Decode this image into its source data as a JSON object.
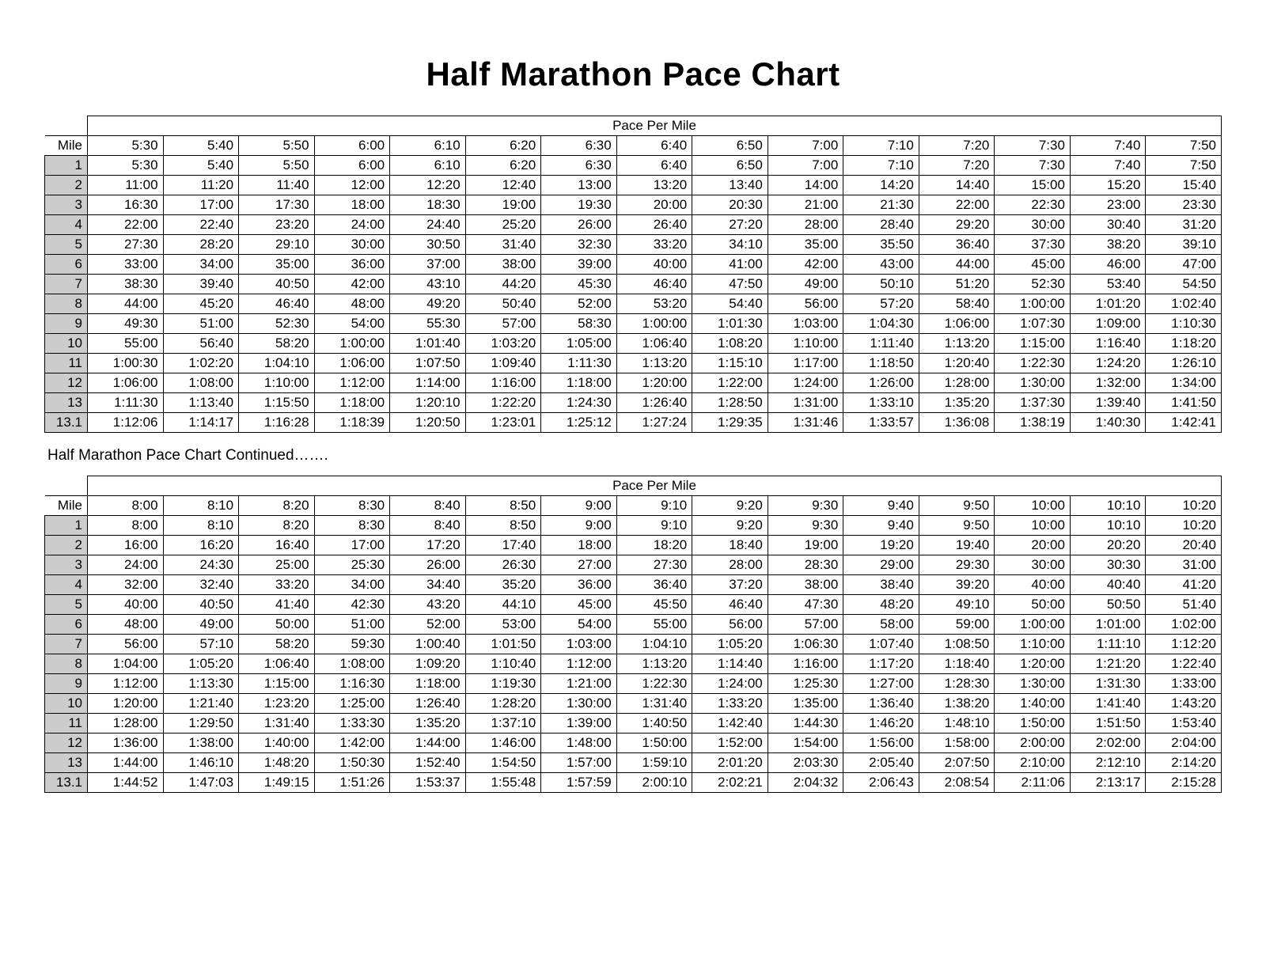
{
  "title": "Half Marathon Pace Chart",
  "subtitle": "Half Marathon Pace Chart Continued…….",
  "table": {
    "type": "table",
    "pacePerMileLabel": "Pace Per Mile",
    "mileLabel": "Mile",
    "mileColBg": "#cccccc",
    "borderColor": "#000000",
    "background": "#ffffff",
    "fontSize": 17,
    "titleFontSize": 42,
    "miles": [
      "1",
      "2",
      "3",
      "4",
      "5",
      "6",
      "7",
      "8",
      "9",
      "10",
      "11",
      "12",
      "13",
      "13.1"
    ]
  },
  "table1": {
    "paceCols": [
      "5:30",
      "5:40",
      "5:50",
      "6:00",
      "6:10",
      "6:20",
      "6:30",
      "6:40",
      "6:50",
      "7:00",
      "7:10",
      "7:20",
      "7:30",
      "7:40",
      "7:50"
    ],
    "rows": [
      [
        "5:30",
        "5:40",
        "5:50",
        "6:00",
        "6:10",
        "6:20",
        "6:30",
        "6:40",
        "6:50",
        "7:00",
        "7:10",
        "7:20",
        "7:30",
        "7:40",
        "7:50"
      ],
      [
        "11:00",
        "11:20",
        "11:40",
        "12:00",
        "12:20",
        "12:40",
        "13:00",
        "13:20",
        "13:40",
        "14:00",
        "14:20",
        "14:40",
        "15:00",
        "15:20",
        "15:40"
      ],
      [
        "16:30",
        "17:00",
        "17:30",
        "18:00",
        "18:30",
        "19:00",
        "19:30",
        "20:00",
        "20:30",
        "21:00",
        "21:30",
        "22:00",
        "22:30",
        "23:00",
        "23:30"
      ],
      [
        "22:00",
        "22:40",
        "23:20",
        "24:00",
        "24:40",
        "25:20",
        "26:00",
        "26:40",
        "27:20",
        "28:00",
        "28:40",
        "29:20",
        "30:00",
        "30:40",
        "31:20"
      ],
      [
        "27:30",
        "28:20",
        "29:10",
        "30:00",
        "30:50",
        "31:40",
        "32:30",
        "33:20",
        "34:10",
        "35:00",
        "35:50",
        "36:40",
        "37:30",
        "38:20",
        "39:10"
      ],
      [
        "33:00",
        "34:00",
        "35:00",
        "36:00",
        "37:00",
        "38:00",
        "39:00",
        "40:00",
        "41:00",
        "42:00",
        "43:00",
        "44:00",
        "45:00",
        "46:00",
        "47:00"
      ],
      [
        "38:30",
        "39:40",
        "40:50",
        "42:00",
        "43:10",
        "44:20",
        "45:30",
        "46:40",
        "47:50",
        "49:00",
        "50:10",
        "51:20",
        "52:30",
        "53:40",
        "54:50"
      ],
      [
        "44:00",
        "45:20",
        "46:40",
        "48:00",
        "49:20",
        "50:40",
        "52:00",
        "53:20",
        "54:40",
        "56:00",
        "57:20",
        "58:40",
        "1:00:00",
        "1:01:20",
        "1:02:40"
      ],
      [
        "49:30",
        "51:00",
        "52:30",
        "54:00",
        "55:30",
        "57:00",
        "58:30",
        "1:00:00",
        "1:01:30",
        "1:03:00",
        "1:04:30",
        "1:06:00",
        "1:07:30",
        "1:09:00",
        "1:10:30"
      ],
      [
        "55:00",
        "56:40",
        "58:20",
        "1:00:00",
        "1:01:40",
        "1:03:20",
        "1:05:00",
        "1:06:40",
        "1:08:20",
        "1:10:00",
        "1:11:40",
        "1:13:20",
        "1:15:00",
        "1:16:40",
        "1:18:20"
      ],
      [
        "1:00:30",
        "1:02:20",
        "1:04:10",
        "1:06:00",
        "1:07:50",
        "1:09:40",
        "1:11:30",
        "1:13:20",
        "1:15:10",
        "1:17:00",
        "1:18:50",
        "1:20:40",
        "1:22:30",
        "1:24:20",
        "1:26:10"
      ],
      [
        "1:06:00",
        "1:08:00",
        "1:10:00",
        "1:12:00",
        "1:14:00",
        "1:16:00",
        "1:18:00",
        "1:20:00",
        "1:22:00",
        "1:24:00",
        "1:26:00",
        "1:28:00",
        "1:30:00",
        "1:32:00",
        "1:34:00"
      ],
      [
        "1:11:30",
        "1:13:40",
        "1:15:50",
        "1:18:00",
        "1:20:10",
        "1:22:20",
        "1:24:30",
        "1:26:40",
        "1:28:50",
        "1:31:00",
        "1:33:10",
        "1:35:20",
        "1:37:30",
        "1:39:40",
        "1:41:50"
      ],
      [
        "1:12:06",
        "1:14:17",
        "1:16:28",
        "1:18:39",
        "1:20:50",
        "1:23:01",
        "1:25:12",
        "1:27:24",
        "1:29:35",
        "1:31:46",
        "1:33:57",
        "1:36:08",
        "1:38:19",
        "1:40:30",
        "1:42:41"
      ]
    ]
  },
  "table2": {
    "paceCols": [
      "8:00",
      "8:10",
      "8:20",
      "8:30",
      "8:40",
      "8:50",
      "9:00",
      "9:10",
      "9:20",
      "9:30",
      "9:40",
      "9:50",
      "10:00",
      "10:10",
      "10:20"
    ],
    "rows": [
      [
        "8:00",
        "8:10",
        "8:20",
        "8:30",
        "8:40",
        "8:50",
        "9:00",
        "9:10",
        "9:20",
        "9:30",
        "9:40",
        "9:50",
        "10:00",
        "10:10",
        "10:20"
      ],
      [
        "16:00",
        "16:20",
        "16:40",
        "17:00",
        "17:20",
        "17:40",
        "18:00",
        "18:20",
        "18:40",
        "19:00",
        "19:20",
        "19:40",
        "20:00",
        "20:20",
        "20:40"
      ],
      [
        "24:00",
        "24:30",
        "25:00",
        "25:30",
        "26:00",
        "26:30",
        "27:00",
        "27:30",
        "28:00",
        "28:30",
        "29:00",
        "29:30",
        "30:00",
        "30:30",
        "31:00"
      ],
      [
        "32:00",
        "32:40",
        "33:20",
        "34:00",
        "34:40",
        "35:20",
        "36:00",
        "36:40",
        "37:20",
        "38:00",
        "38:40",
        "39:20",
        "40:00",
        "40:40",
        "41:20"
      ],
      [
        "40:00",
        "40:50",
        "41:40",
        "42:30",
        "43:20",
        "44:10",
        "45:00",
        "45:50",
        "46:40",
        "47:30",
        "48:20",
        "49:10",
        "50:00",
        "50:50",
        "51:40"
      ],
      [
        "48:00",
        "49:00",
        "50:00",
        "51:00",
        "52:00",
        "53:00",
        "54:00",
        "55:00",
        "56:00",
        "57:00",
        "58:00",
        "59:00",
        "1:00:00",
        "1:01:00",
        "1:02:00"
      ],
      [
        "56:00",
        "57:10",
        "58:20",
        "59:30",
        "1:00:40",
        "1:01:50",
        "1:03:00",
        "1:04:10",
        "1:05:20",
        "1:06:30",
        "1:07:40",
        "1:08:50",
        "1:10:00",
        "1:11:10",
        "1:12:20"
      ],
      [
        "1:04:00",
        "1:05:20",
        "1:06:40",
        "1:08:00",
        "1:09:20",
        "1:10:40",
        "1:12:00",
        "1:13:20",
        "1:14:40",
        "1:16:00",
        "1:17:20",
        "1:18:40",
        "1:20:00",
        "1:21:20",
        "1:22:40"
      ],
      [
        "1:12:00",
        "1:13:30",
        "1:15:00",
        "1:16:30",
        "1:18:00",
        "1:19:30",
        "1:21:00",
        "1:22:30",
        "1:24:00",
        "1:25:30",
        "1:27:00",
        "1:28:30",
        "1:30:00",
        "1:31:30",
        "1:33:00"
      ],
      [
        "1:20:00",
        "1:21:40",
        "1:23:20",
        "1:25:00",
        "1:26:40",
        "1:28:20",
        "1:30:00",
        "1:31:40",
        "1:33:20",
        "1:35:00",
        "1:36:40",
        "1:38:20",
        "1:40:00",
        "1:41:40",
        "1:43:20"
      ],
      [
        "1:28:00",
        "1:29:50",
        "1:31:40",
        "1:33:30",
        "1:35:20",
        "1:37:10",
        "1:39:00",
        "1:40:50",
        "1:42:40",
        "1:44:30",
        "1:46:20",
        "1:48:10",
        "1:50:00",
        "1:51:50",
        "1:53:40"
      ],
      [
        "1:36:00",
        "1:38:00",
        "1:40:00",
        "1:42:00",
        "1:44:00",
        "1:46:00",
        "1:48:00",
        "1:50:00",
        "1:52:00",
        "1:54:00",
        "1:56:00",
        "1:58:00",
        "2:00:00",
        "2:02:00",
        "2:04:00"
      ],
      [
        "1:44:00",
        "1:46:10",
        "1:48:20",
        "1:50:30",
        "1:52:40",
        "1:54:50",
        "1:57:00",
        "1:59:10",
        "2:01:20",
        "2:03:30",
        "2:05:40",
        "2:07:50",
        "2:10:00",
        "2:12:10",
        "2:14:20"
      ],
      [
        "1:44:52",
        "1:47:03",
        "1:49:15",
        "1:51:26",
        "1:53:37",
        "1:55:48",
        "1:57:59",
        "2:00:10",
        "2:02:21",
        "2:04:32",
        "2:06:43",
        "2:08:54",
        "2:11:06",
        "2:13:17",
        "2:15:28"
      ]
    ]
  }
}
